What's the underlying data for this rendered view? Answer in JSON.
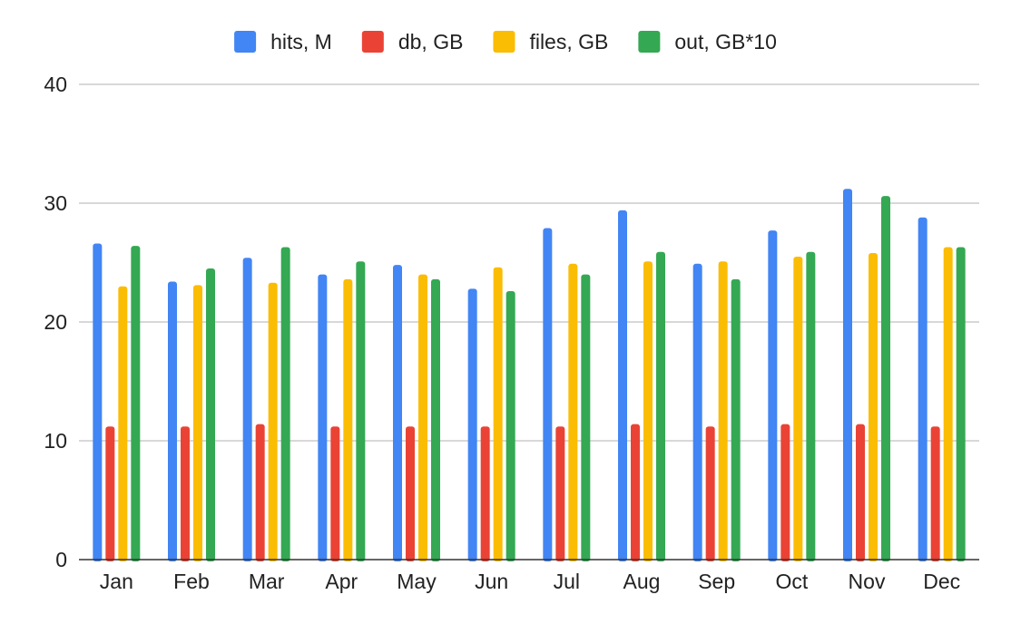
{
  "chart_data": {
    "type": "bar",
    "title": "",
    "xlabel": "",
    "ylabel": "",
    "ylim": [
      0,
      40
    ],
    "yticks": [
      0,
      10,
      20,
      30,
      40
    ],
    "grid": true,
    "legend_position": "top-center",
    "categories": [
      "Jan",
      "Feb",
      "Mar",
      "Apr",
      "May",
      "Jun",
      "Jul",
      "Aug",
      "Sep",
      "Oct",
      "Nov",
      "Dec"
    ],
    "series": [
      {
        "name": "hits, M",
        "color": "#4285F4",
        "values": [
          26.6,
          23.4,
          25.4,
          24.0,
          24.8,
          22.8,
          27.9,
          29.4,
          24.9,
          27.7,
          31.2,
          28.8
        ]
      },
      {
        "name": "db, GB",
        "color": "#EA4335",
        "values": [
          11.2,
          11.2,
          11.4,
          11.2,
          11.2,
          11.2,
          11.2,
          11.4,
          11.2,
          11.4,
          11.4,
          11.2
        ]
      },
      {
        "name": "files, GB",
        "color": "#FBBC04",
        "values": [
          23.0,
          23.1,
          23.3,
          23.6,
          24.0,
          24.6,
          24.9,
          25.1,
          25.1,
          25.5,
          25.8,
          26.3
        ]
      },
      {
        "name": "out, GB*10",
        "color": "#34A853",
        "values": [
          26.4,
          24.5,
          26.3,
          25.1,
          23.6,
          22.6,
          24.0,
          25.9,
          23.6,
          25.9,
          30.6,
          26.3
        ]
      }
    ]
  }
}
